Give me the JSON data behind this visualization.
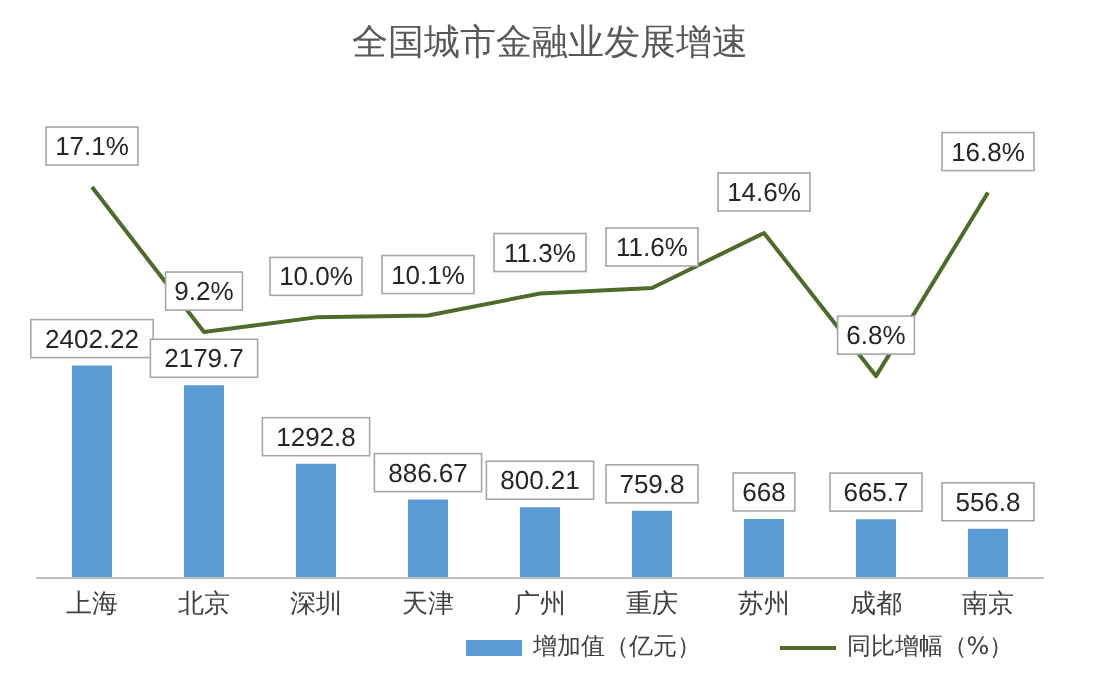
{
  "chart_data": {
    "type": "bar",
    "title": "全国城市金融业发展增速",
    "categories": [
      "上海",
      "北京",
      "深圳",
      "天津",
      "广州",
      "重庆",
      "苏州",
      "成都",
      "南京"
    ],
    "series": [
      {
        "name": "增加值（亿元）",
        "color": "#5b9bd5",
        "values": [
          2402.22,
          2179.7,
          1292.8,
          886.67,
          800.21,
          759.8,
          668,
          665.7,
          556.8
        ]
      },
      {
        "name": "同比增幅（%）",
        "type": "line",
        "axis": "y2",
        "color": "#4f6b2b",
        "values": [
          17.1,
          9.2,
          10.0,
          10.1,
          11.3,
          11.6,
          14.6,
          6.8,
          16.8
        ],
        "value_labels": [
          "17.1%",
          "9.2%",
          "10.0%",
          "10.1%",
          "11.3%",
          "11.6%",
          "14.6%",
          "6.8%",
          "16.8%"
        ]
      }
    ],
    "tick_labels": "x",
    "data_labels": true,
    "legend": "bottom",
    "grid": false,
    "marker": "none"
  }
}
